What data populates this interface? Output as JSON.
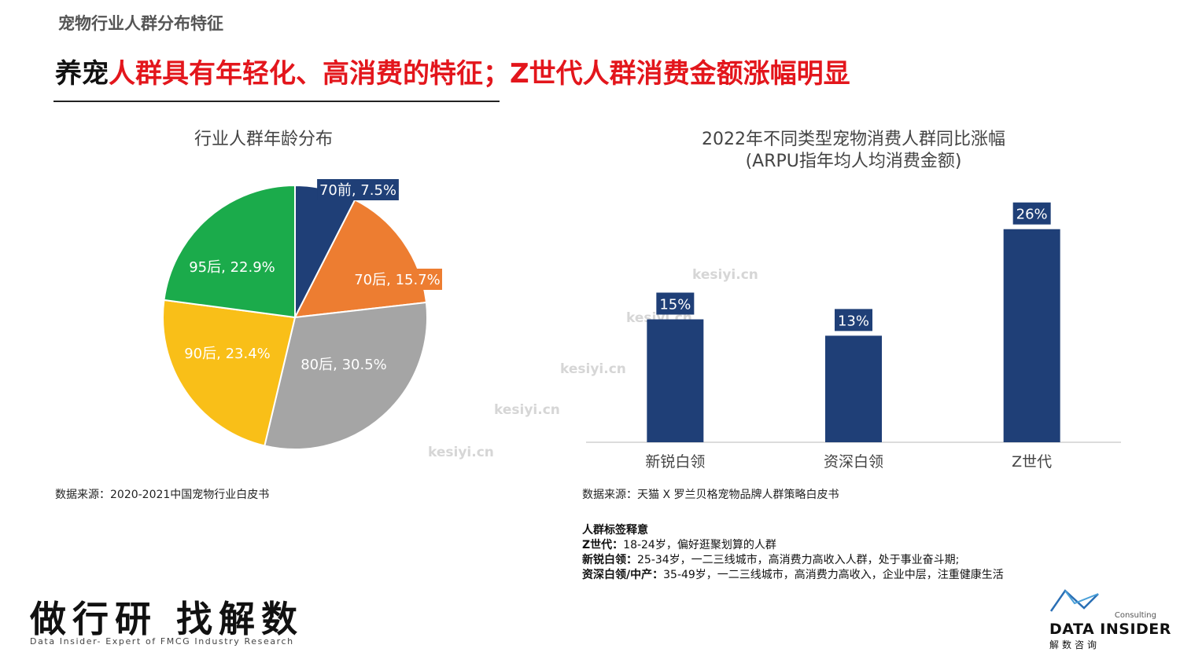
{
  "page": {
    "section_title": "宠物行业人群分布特征",
    "headline_black": "养宠",
    "headline_red_1": "人群具有年轻化、高消费的特征；",
    "headline_red_2": "Z世代人群消费金额涨幅明显"
  },
  "chart_data": [
    {
      "type": "pie",
      "title": "行业人群年龄分布",
      "slices": [
        {
          "label": "70前",
          "value": 7.5,
          "text": "70前, 7.5%",
          "color": "#1f3f77"
        },
        {
          "label": "70后",
          "value": 15.7,
          "text": "70后, 15.7%",
          "color": "#ed7d31"
        },
        {
          "label": "80后",
          "value": 30.5,
          "text": "80后, 30.5%",
          "color": "#a5a5a5"
        },
        {
          "label": "90后",
          "value": 23.4,
          "text": "90后, 23.4%",
          "color": "#f9bf18"
        },
        {
          "label": "95后",
          "value": 22.9,
          "text": "95后, 22.9%",
          "color": "#1bab4b"
        }
      ]
    },
    {
      "type": "bar",
      "title": "2022年不同类型宠物消费人群同比涨幅",
      "subtitle": "(ARPU指年均人均消费金额)",
      "categories": [
        "新锐白领",
        "资深白领",
        "Z世代"
      ],
      "values": [
        15,
        13,
        26
      ],
      "value_labels": [
        "15%",
        "13%",
        "26%"
      ],
      "color": "#1f3f77",
      "ylim": [
        0,
        30
      ]
    }
  ],
  "sources": {
    "pie": "数据来源：2020-2021中国宠物行业白皮书",
    "bar": "数据来源：天猫 X 罗兰贝格宠物品牌人群策略白皮书"
  },
  "notes": {
    "title": "人群标签释意",
    "items": [
      {
        "key": "Z世代：",
        "text": "18-24岁，偏好逛聚划算的人群"
      },
      {
        "key": "新锐白领：",
        "text": "25-34岁，一二三线城市，高消费力高收入人群，处于事业奋斗期;"
      },
      {
        "key": "资深白领/中产：",
        "text": "35-49岁，一二三线城市，高消费力高收入，企业中层，注重健康生活"
      }
    ]
  },
  "brand": {
    "slogan": "做行研 找解数",
    "tagline": "Data Insider- Expert of FMCG Industry Research",
    "logo_consulting": "Consulting",
    "logo_name": "DATA INSIDER",
    "logo_cn": "解数咨询"
  },
  "watermark": "kesiyi.cn"
}
